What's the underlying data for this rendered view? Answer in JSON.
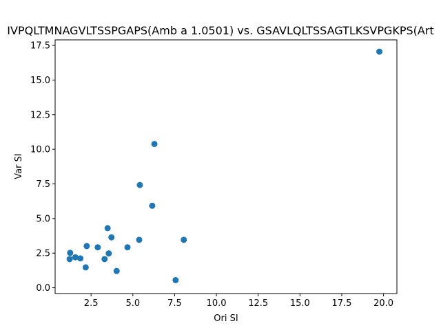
{
  "chart_data": {
    "type": "scatter",
    "title": "IVPQLTMNAGVLTSSPGAPS(Amb a 1.0501) vs. GSAVLQLTSSAGTLKSVPGKPS(Art",
    "xlabel": "Ori SI",
    "ylabel": "Var SI",
    "xlim": [
      0.35,
      20.8
    ],
    "ylim": [
      -0.42,
      17.9
    ],
    "xticks": [
      2.5,
      5.0,
      7.5,
      10.0,
      12.5,
      15.0,
      17.5,
      20.0
    ],
    "xtick_labels": [
      "2.5",
      "5.0",
      "7.5",
      "10.0",
      "12.5",
      "15.0",
      "17.5",
      "20.0"
    ],
    "yticks": [
      0.0,
      2.5,
      5.0,
      7.5,
      10.0,
      12.5,
      15.0,
      17.5
    ],
    "ytick_labels": [
      "0.0",
      "2.5",
      "5.0",
      "7.5",
      "10.0",
      "12.5",
      "15.0",
      "17.5"
    ],
    "grid": false,
    "marker_color": "#1f77b4",
    "points": [
      {
        "x": 1.25,
        "y": 2.52
      },
      {
        "x": 1.22,
        "y": 2.07
      },
      {
        "x": 1.56,
        "y": 2.2
      },
      {
        "x": 1.86,
        "y": 2.12
      },
      {
        "x": 2.18,
        "y": 1.47
      },
      {
        "x": 2.24,
        "y": 3.01
      },
      {
        "x": 2.9,
        "y": 2.92
      },
      {
        "x": 3.31,
        "y": 2.07
      },
      {
        "x": 3.49,
        "y": 4.3
      },
      {
        "x": 3.56,
        "y": 2.48
      },
      {
        "x": 3.72,
        "y": 3.64
      },
      {
        "x": 4.03,
        "y": 1.21
      },
      {
        "x": 4.68,
        "y": 2.92
      },
      {
        "x": 5.38,
        "y": 3.46
      },
      {
        "x": 5.42,
        "y": 7.42
      },
      {
        "x": 6.16,
        "y": 5.92
      },
      {
        "x": 6.29,
        "y": 10.38
      },
      {
        "x": 7.56,
        "y": 0.55
      },
      {
        "x": 8.05,
        "y": 3.46
      },
      {
        "x": 19.75,
        "y": 17.05
      }
    ]
  }
}
